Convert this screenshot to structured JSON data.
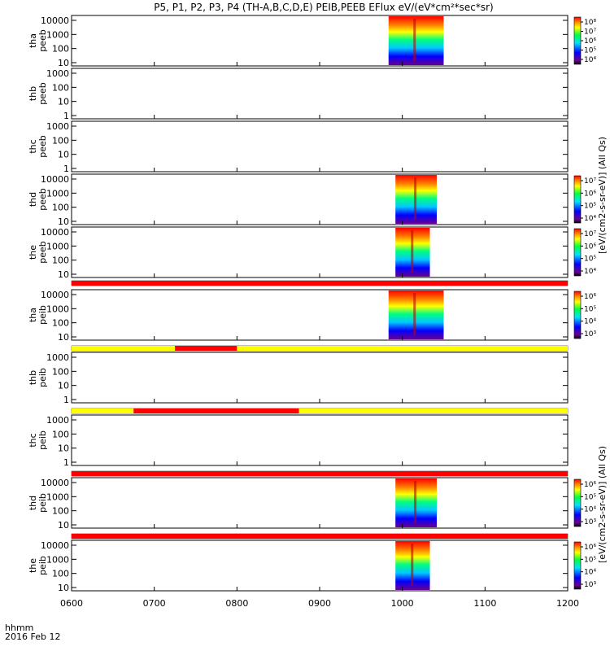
{
  "title": "P5, P1, P2, P3, P4 (TH-A,B,C,D,E) PEIB,PEEB EFlux eV/(eV*cm²*sec*sr)",
  "colorbar_units_long": "[eV/(cm2-s-sr-eV)] (All Qs)",
  "colorbar_units_short": "[eV/(cm2-s-sr-eV)]",
  "footer": {
    "line1": "hhmm",
    "line2": "2016 Feb 12"
  },
  "colors": {
    "quality_red": "#ff0000",
    "quality_yellow": "#ffff00",
    "spectrogram": [
      "#6a0090",
      "#0000ff",
      "#00c8ff",
      "#00ff80",
      "#ffff00",
      "#ff8000",
      "#ff0000"
    ]
  },
  "chart_data": {
    "type": "heatmap",
    "x_axis": {
      "ticks": [
        "0600",
        "0700",
        "0800",
        "0900",
        "1000",
        "1100",
        "1200"
      ],
      "range": [
        "0600",
        "1200"
      ]
    },
    "panels": [
      {
        "id": "tha-peeb",
        "label": [
          "tha",
          "peeb"
        ],
        "yticks": [
          "10",
          "100",
          "1000",
          "10000"
        ],
        "data_start": "0950",
        "data_end": "1030",
        "colorbar": {
          "labels": [
            "10⁸",
            "10⁷",
            "10⁶",
            "10⁵",
            "10⁴"
          ]
        }
      },
      {
        "id": "thb-peeb",
        "label": [
          "thb",
          "peeb"
        ],
        "yticks": [
          "1",
          "10",
          "100",
          "1000"
        ],
        "data_start": null,
        "data_end": null
      },
      {
        "id": "thc-peeb",
        "label": [
          "thc",
          "peeb"
        ],
        "yticks": [
          "1",
          "10",
          "100",
          "1000"
        ],
        "data_start": null,
        "data_end": null
      },
      {
        "id": "thd-peeb",
        "label": [
          "thd",
          "peeb"
        ],
        "yticks": [
          "10",
          "100",
          "1000",
          "10000"
        ],
        "data_start": "0955",
        "data_end": "1025",
        "colorbar": {
          "labels": [
            "10⁷",
            "10⁶",
            "10⁵",
            "10⁴"
          ]
        }
      },
      {
        "id": "the-peeb",
        "label": [
          "the",
          "peeb"
        ],
        "yticks": [
          "10",
          "100",
          "1000",
          "10000"
        ],
        "data_start": "0955",
        "data_end": "1020",
        "colorbar": {
          "labels": [
            "10⁷",
            "10⁶",
            "10⁵",
            "10⁴"
          ]
        }
      },
      {
        "id": "tha-peib",
        "label": [
          "tha",
          "peib"
        ],
        "yticks": [
          "10",
          "100",
          "1000",
          "10000"
        ],
        "data_start": "0950",
        "data_end": "1030",
        "colorbar": {
          "labels": [
            "10⁶",
            "10⁵",
            "10⁴",
            "10³"
          ]
        }
      },
      {
        "id": "thb-peib",
        "label": [
          "thb",
          "peib"
        ],
        "yticks": [
          "1",
          "10",
          "100",
          "1000"
        ],
        "data_start": null,
        "data_end": null
      },
      {
        "id": "thc-peib",
        "label": [
          "thc",
          "peib"
        ],
        "yticks": [
          "1",
          "10",
          "100",
          "1000"
        ],
        "data_start": null,
        "data_end": null
      },
      {
        "id": "thd-peib",
        "label": [
          "thd",
          "peib"
        ],
        "yticks": [
          "10",
          "100",
          "1000",
          "10000"
        ],
        "data_start": "0955",
        "data_end": "1025",
        "colorbar": {
          "labels": [
            "10⁶",
            "10⁵",
            "10⁴",
            "10³"
          ]
        }
      },
      {
        "id": "the-peib",
        "label": [
          "the",
          "peib"
        ],
        "yticks": [
          "10",
          "100",
          "1000",
          "10000"
        ],
        "data_start": "0955",
        "data_end": "1020",
        "colorbar": {
          "labels": [
            "10⁶",
            "10⁵",
            "10⁴",
            "10³"
          ]
        }
      }
    ],
    "quality_bars": [
      {
        "after_panel": "the-peeb",
        "segments": [
          {
            "from": "0600",
            "to": "1200",
            "color": "red"
          }
        ]
      },
      {
        "after_panel": "tha-peib",
        "segments": [
          {
            "from": "0600",
            "to": "0715",
            "color": "yellow"
          },
          {
            "from": "0715",
            "to": "0800",
            "color": "red"
          },
          {
            "from": "0800",
            "to": "1200",
            "color": "yellow"
          }
        ]
      },
      {
        "after_panel": "thb-peib",
        "segments": [
          {
            "from": "0600",
            "to": "0645",
            "color": "yellow"
          },
          {
            "from": "0645",
            "to": "0845",
            "color": "red"
          },
          {
            "from": "0845",
            "to": "1200",
            "color": "yellow"
          }
        ]
      },
      {
        "after_panel": "thc-peib",
        "segments": [
          {
            "from": "0600",
            "to": "1200",
            "color": "red"
          }
        ]
      },
      {
        "after_panel": "thd-peib",
        "segments": [
          {
            "from": "0600",
            "to": "1200",
            "color": "red"
          }
        ]
      }
    ]
  }
}
